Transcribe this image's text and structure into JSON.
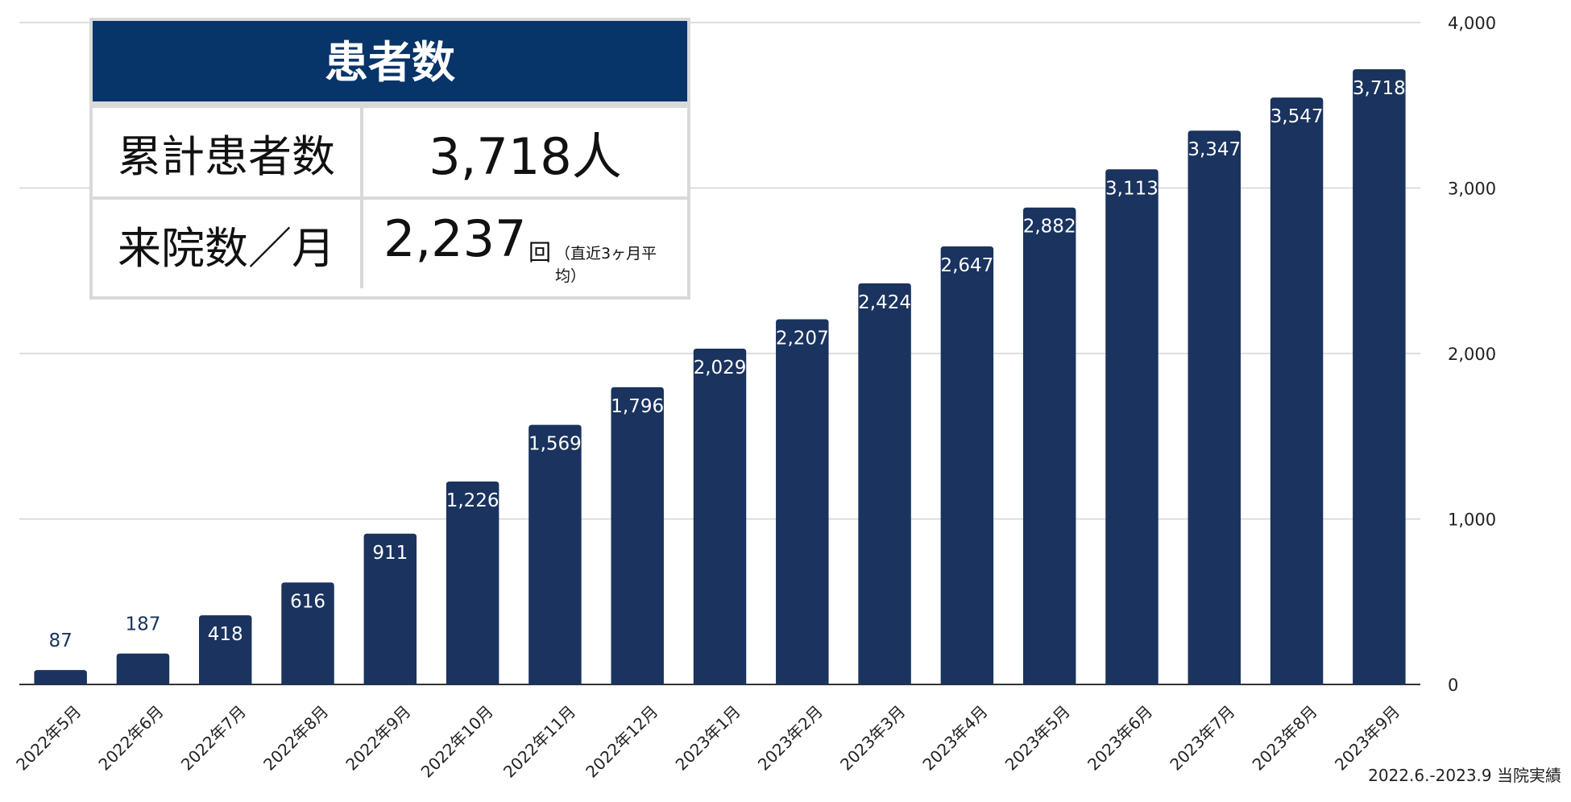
{
  "chart_data": {
    "type": "bar",
    "categories": [
      "2022年5月",
      "2022年6月",
      "2022年7月",
      "2022年8月",
      "2022年9月",
      "2022年10月",
      "2022年11月",
      "2022年12月",
      "2023年1月",
      "2023年2月",
      "2023年3月",
      "2023年4月",
      "2023年5月",
      "2023年6月",
      "2023年7月",
      "2023年8月",
      "2023年9月"
    ],
    "values": [
      87,
      187,
      418,
      616,
      911,
      1226,
      1569,
      1796,
      2029,
      2207,
      2424,
      2647,
      2882,
      3113,
      3347,
      3547,
      3718
    ],
    "value_labels": [
      "87",
      "187",
      "418",
      "616",
      "911",
      "1,226",
      "1,569",
      "1,796",
      "2,029",
      "2,207",
      "2,424",
      "2,647",
      "2,882",
      "3,113",
      "3,347",
      "3,547",
      "3,718"
    ],
    "y_ticks": [
      0,
      1000,
      2000,
      3000,
      4000
    ],
    "y_tick_labels": [
      "0",
      "1,000",
      "2,000",
      "3,000",
      "4,000"
    ],
    "ylim": [
      0,
      4000
    ],
    "y_axis_side": "right",
    "grid": true,
    "bar_color": "#1a335f",
    "label_color_inside": "#ffffff",
    "label_color_outside": "#1a335f"
  },
  "summary": {
    "title": "患者数",
    "rows": [
      {
        "label": "累計患者数",
        "value": "3,718人"
      },
      {
        "label": "来院数／月",
        "value": "2,237",
        "unit": "回",
        "note": "（直近3ヶ月平均）"
      }
    ]
  },
  "note": "2022.6.-2023.9 当院実績",
  "colors": {
    "header_bg": "#073469",
    "border": "#d9d9d9"
  }
}
